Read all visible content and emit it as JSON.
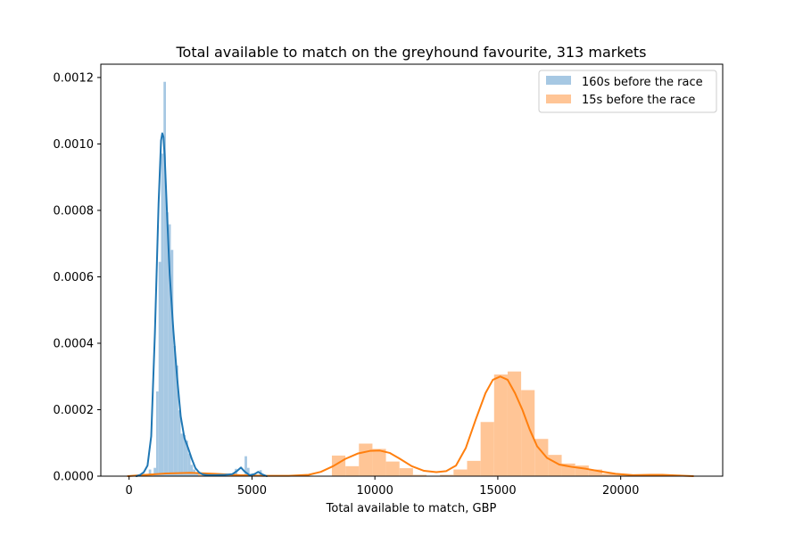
{
  "chart_data": {
    "type": "histogram",
    "title": "Total available to match on the greyhound favourite, 313 markets",
    "xlabel": "Total available to match, GBP",
    "ylabel": "",
    "xlim": [
      -1150,
      24150
    ],
    "ylim": [
      0,
      0.00124
    ],
    "x_ticks": [
      0,
      5000,
      10000,
      15000,
      20000
    ],
    "x_tick_labels": [
      "0",
      "5000",
      "10000",
      "15000",
      "20000"
    ],
    "y_ticks": [
      0,
      0.0002,
      0.0004,
      0.0006,
      0.0008,
      0.001,
      0.0012
    ],
    "y_tick_labels": [
      "0.0000",
      "0.0002",
      "0.0004",
      "0.0006",
      "0.0008",
      "0.0010",
      "0.0012"
    ],
    "grid": false,
    "legend_position": "top-right",
    "series": [
      {
        "name": "160s before the race",
        "bar_color": "#a6c8e3",
        "line_color": "#1f77b4",
        "bins": [
          [
            600,
            7e-06
          ],
          [
            800,
            2e-05
          ],
          [
            1000,
            2.5e-05
          ],
          [
            1100,
            0.000255
          ],
          [
            1200,
            0.000645
          ],
          [
            1300,
            0.000971
          ],
          [
            1400,
            0.001187
          ],
          [
            1500,
            0.000794
          ],
          [
            1600,
            0.000758
          ],
          [
            1700,
            0.000681
          ],
          [
            1800,
            0.000392
          ],
          [
            1900,
            0.000333
          ],
          [
            2000,
            0.000198
          ],
          [
            2100,
            0.000128
          ],
          [
            2200,
            0.000124
          ],
          [
            2300,
            0.000107
          ],
          [
            2400,
            6.8e-05
          ],
          [
            2500,
            3.4e-05
          ],
          [
            2600,
            2e-05
          ],
          [
            2700,
            1.2e-05
          ],
          [
            4300,
            2.2e-05
          ],
          [
            4700,
            6e-05
          ],
          [
            4800,
            2.5e-05
          ],
          [
            5300,
            1.8e-05
          ]
        ],
        "kde": [
          [
            300,
            0
          ],
          [
            450,
            4e-06
          ],
          [
            600,
            1.2e-05
          ],
          [
            750,
            3.2e-05
          ],
          [
            900,
            0.00012
          ],
          [
            1050,
            0.00043
          ],
          [
            1200,
            0.00082
          ],
          [
            1300,
            0.00101
          ],
          [
            1350,
            0.001032
          ],
          [
            1400,
            0.00102
          ],
          [
            1450,
            0.00096
          ],
          [
            1550,
            0.00078
          ],
          [
            1650,
            0.00061
          ],
          [
            1800,
            0.00044
          ],
          [
            1950,
            0.0003
          ],
          [
            2100,
            0.00018
          ],
          [
            2250,
            0.000115
          ],
          [
            2400,
            8.5e-05
          ],
          [
            2550,
            5.2e-05
          ],
          [
            2700,
            2.4e-05
          ],
          [
            2850,
            1.1e-05
          ],
          [
            3000,
            5e-06
          ],
          [
            3200,
            3e-06
          ],
          [
            3500,
            3e-06
          ],
          [
            3900,
            4e-06
          ],
          [
            4200,
            6e-06
          ],
          [
            4400,
            1.6e-05
          ],
          [
            4550,
            2.6e-05
          ],
          [
            4700,
            1.4e-05
          ],
          [
            4900,
            3e-06
          ],
          [
            5100,
            6e-06
          ],
          [
            5250,
            1.3e-05
          ],
          [
            5400,
            6e-06
          ],
          [
            5600,
            0
          ]
        ]
      },
      {
        "name": "15s before the race",
        "bar_color": "#ffc596",
        "line_color": "#ff7f0e",
        "bins": [
          [
            550,
            6e-06
          ],
          [
            1100,
            8e-06
          ],
          [
            1650,
            9e-06
          ],
          [
            2200,
            1e-05
          ],
          [
            2750,
            1e-05
          ],
          [
            3300,
            6e-06
          ],
          [
            3850,
            4e-06
          ],
          [
            8250,
            6.2e-05
          ],
          [
            8800,
            3e-05
          ],
          [
            9350,
            9.8e-05
          ],
          [
            9900,
            8.2e-05
          ],
          [
            10450,
            4.4e-05
          ],
          [
            11000,
            2.4e-05
          ],
          [
            11550,
            4e-06
          ],
          [
            12650,
            4e-06
          ],
          [
            13200,
            2e-05
          ],
          [
            13750,
            4.6e-05
          ],
          [
            14300,
            0.000163
          ],
          [
            14850,
            0.000306
          ],
          [
            15400,
            0.000315
          ],
          [
            15950,
            0.000259
          ],
          [
            16500,
            0.000112
          ],
          [
            17050,
            6.4e-05
          ],
          [
            17600,
            3.8e-05
          ],
          [
            18150,
            3.2e-05
          ],
          [
            18700,
            2e-05
          ],
          [
            19250,
            7e-06
          ],
          [
            19800,
            5e-06
          ],
          [
            20900,
            3e-06
          ],
          [
            21450,
            3e-06
          ]
        ],
        "kde": [
          [
            -50,
            0
          ],
          [
            500,
            3e-06
          ],
          [
            1500,
            8e-06
          ],
          [
            2500,
            1e-05
          ],
          [
            3500,
            7e-06
          ],
          [
            4500,
            3e-06
          ],
          [
            5500,
            1e-06
          ],
          [
            6500,
            1e-06
          ],
          [
            7300,
            4e-06
          ],
          [
            7800,
            1.3e-05
          ],
          [
            8300,
            3e-05
          ],
          [
            8800,
            5.2e-05
          ],
          [
            9300,
            6.8e-05
          ],
          [
            9800,
            7.6e-05
          ],
          [
            10200,
            7.7e-05
          ],
          [
            10600,
            7e-05
          ],
          [
            11000,
            5.3e-05
          ],
          [
            11500,
            3e-05
          ],
          [
            12000,
            1.6e-05
          ],
          [
            12500,
            1.2e-05
          ],
          [
            12900,
            1.5e-05
          ],
          [
            13300,
            3.2e-05
          ],
          [
            13700,
            8.5e-05
          ],
          [
            14100,
            0.00017
          ],
          [
            14500,
            0.00025
          ],
          [
            14800,
            0.00029
          ],
          [
            15100,
            0.0003
          ],
          [
            15400,
            0.00029
          ],
          [
            15700,
            0.00025
          ],
          [
            16000,
            0.0002
          ],
          [
            16300,
            0.00014
          ],
          [
            16600,
            9e-05
          ],
          [
            17000,
            5.5e-05
          ],
          [
            17500,
            3.5e-05
          ],
          [
            18000,
            2.8e-05
          ],
          [
            18600,
            2.2e-05
          ],
          [
            19200,
            1.4e-05
          ],
          [
            19800,
            7e-06
          ],
          [
            20500,
            3e-06
          ],
          [
            21200,
            4e-06
          ],
          [
            21700,
            4e-06
          ],
          [
            22300,
            2e-06
          ],
          [
            22950,
            0
          ]
        ]
      }
    ]
  }
}
